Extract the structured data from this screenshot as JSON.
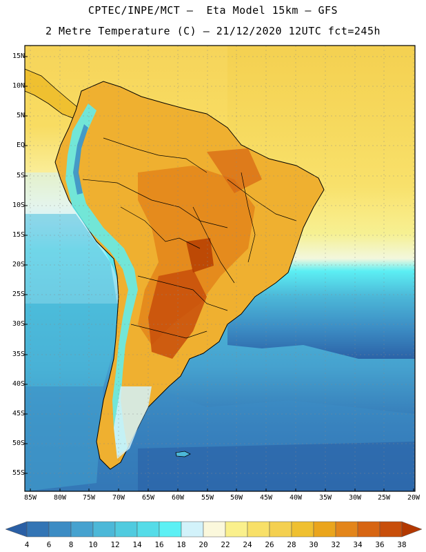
{
  "header": {
    "title_line1": "CPTEC/INPE/MCT –  Eta Model 15km – GFS",
    "title_line2": "2 Metre Temperature (C) – 21/12/2020 12UTC fct=245h"
  },
  "axes": {
    "lat_labels": [
      "15N",
      "10N",
      "5N",
      "EQ",
      "5S",
      "10S",
      "15S",
      "20S",
      "25S",
      "30S",
      "35S",
      "40S",
      "45S",
      "50S",
      "55S"
    ],
    "lon_labels": [
      "85W",
      "80W",
      "75W",
      "70W",
      "65W",
      "60W",
      "55W",
      "50W",
      "45W",
      "40W",
      "35W",
      "30W",
      "25W",
      "20W"
    ]
  },
  "colorbar": {
    "labels": [
      "4",
      "6",
      "8",
      "10",
      "12",
      "14",
      "16",
      "18",
      "20",
      "22",
      "24",
      "26",
      "28",
      "30",
      "32",
      "34",
      "36",
      "38"
    ],
    "colors": [
      "#2a5fa5",
      "#3375b5",
      "#3c8cc4",
      "#46a2cf",
      "#4cb8d8",
      "#50cbdf",
      "#55dce8",
      "#5cf0f4",
      "#d2f2fa",
      "#fbf8dc",
      "#faf08c",
      "#f8e068",
      "#f4d050",
      "#efc030",
      "#eaa51c",
      "#e3851a",
      "#d76512",
      "#c84e0a",
      "#b33800"
    ]
  },
  "map": {
    "region": "South America",
    "variable": "2 Metre Temperature (C)"
  }
}
